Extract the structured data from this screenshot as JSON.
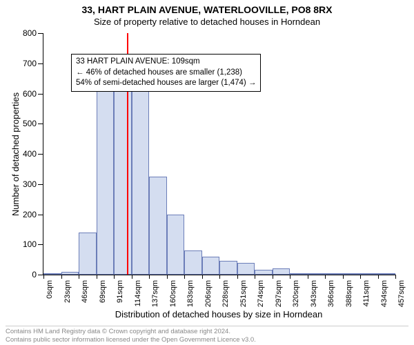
{
  "title_line1": "33, HART PLAIN AVENUE, WATERLOOVILLE, PO8 8RX",
  "title_line2": "Size of property relative to detached houses in Horndean",
  "ylabel": "Number of detached properties",
  "xlabel": "Distribution of detached houses by size in Horndean",
  "chart": {
    "type": "histogram",
    "ylim_max": 800,
    "ytick_step": 100,
    "bin_width_sqm": 23,
    "bar_fill": "#d4ddf0",
    "bar_stroke": "#6b7db8",
    "background": "#ffffff",
    "xticks": [
      "0sqm",
      "23sqm",
      "46sqm",
      "69sqm",
      "91sqm",
      "114sqm",
      "137sqm",
      "160sqm",
      "183sqm",
      "206sqm",
      "228sqm",
      "251sqm",
      "274sqm",
      "297sqm",
      "320sqm",
      "343sqm",
      "366sqm",
      "388sqm",
      "411sqm",
      "434sqm",
      "457sqm"
    ],
    "values": [
      5,
      10,
      140,
      635,
      625,
      610,
      325,
      200,
      80,
      60,
      45,
      40,
      15,
      20,
      5,
      3,
      2,
      2,
      1,
      1
    ]
  },
  "marker": {
    "sqm": 109,
    "color": "#ff0000"
  },
  "annotation": {
    "line1": "33 HART PLAIN AVENUE: 109sqm",
    "line2": "← 46% of detached houses are smaller (1,238)",
    "line3": "54% of semi-detached houses are larger (1,474) →"
  },
  "footer": {
    "line1": "Contains HM Land Registry data © Crown copyright and database right 2024.",
    "line2": "Contains public sector information licensed under the Open Government Licence v3.0."
  },
  "fontsize": {
    "title": 14,
    "subtitle": 13,
    "axis_label": 13,
    "tick": 12,
    "xtick": 11,
    "annotation": 11.5,
    "footer": 9.5
  }
}
